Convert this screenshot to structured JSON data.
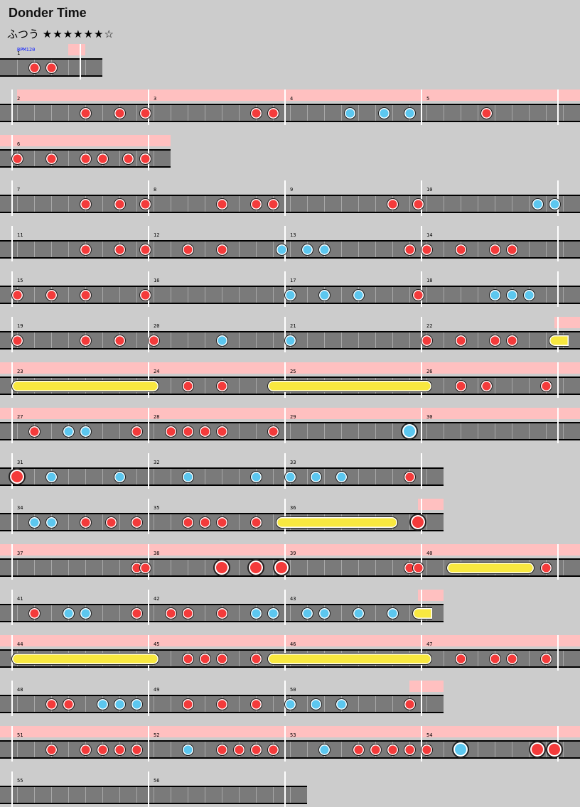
{
  "song": {
    "title": "Donder Time",
    "difficulty_label": "ふつう",
    "stars": "★★★★★★☆",
    "star_level": 6,
    "star_max": 7
  },
  "bpm_label": "BPM120",
  "colors": {
    "background": "#cccccc",
    "lane": "#7a7a7a",
    "gogo": "#ffc0c0",
    "don": "#f43b3b",
    "ka": "#5cc7ef",
    "roll": "#f8e840",
    "bar_line": "#ffffff"
  },
  "legend": {
    "d": "don (red)",
    "k": "ka (blue)",
    "D": "big don",
    "K": "big ka",
    "r": "drumroll"
  },
  "chart_data": {
    "type": "table",
    "unit": "beats",
    "rows": [
      {
        "measures": [
          {
            "n": "1",
            "beats": 2
          }
        ],
        "gogo": [
          [
            1.5,
            2
          ]
        ],
        "notes": [
          [
            0.5,
            "d"
          ],
          [
            1,
            "d"
          ]
        ]
      },
      {
        "measures": [
          {
            "n": "2",
            "beats": 4
          },
          {
            "n": "3",
            "beats": 4
          },
          {
            "n": "4",
            "beats": 4
          },
          {
            "n": "5",
            "beats": 4
          }
        ],
        "gogo": [
          [
            0,
            16.5
          ]
        ],
        "notes": [
          [
            2,
            "d"
          ],
          [
            3,
            "d"
          ],
          [
            3.75,
            "d"
          ],
          [
            7,
            "d"
          ],
          [
            7.5,
            "d"
          ],
          [
            9.75,
            "k"
          ],
          [
            10.75,
            "k"
          ],
          [
            11.5,
            "k"
          ],
          [
            13.75,
            "d"
          ]
        ]
      },
      {
        "measures": [
          {
            "n": "6",
            "beats": 4
          }
        ],
        "gogo": [
          [
            -0.5,
            4.5
          ]
        ],
        "notes": [
          [
            0,
            "d"
          ],
          [
            1,
            "d"
          ],
          [
            2,
            "d"
          ],
          [
            2.5,
            "d"
          ],
          [
            3.25,
            "d"
          ],
          [
            3.75,
            "d"
          ]
        ]
      },
      {
        "measures": [
          {
            "n": "7",
            "beats": 4
          },
          {
            "n": "8",
            "beats": 4
          },
          {
            "n": "9",
            "beats": 4
          },
          {
            "n": "10",
            "beats": 4
          }
        ],
        "gogo": [],
        "notes": [
          [
            2,
            "d"
          ],
          [
            3,
            "d"
          ],
          [
            3.75,
            "d"
          ],
          [
            6,
            "d"
          ],
          [
            7,
            "d"
          ],
          [
            7.5,
            "d"
          ],
          [
            11,
            "d"
          ],
          [
            11.75,
            "d"
          ],
          [
            15.25,
            "k"
          ],
          [
            15.75,
            "k"
          ]
        ]
      },
      {
        "measures": [
          {
            "n": "11",
            "beats": 4
          },
          {
            "n": "12",
            "beats": 4
          },
          {
            "n": "13",
            "beats": 4
          },
          {
            "n": "14",
            "beats": 4
          }
        ],
        "gogo": [],
        "notes": [
          [
            2,
            "d"
          ],
          [
            3,
            "d"
          ],
          [
            3.75,
            "d"
          ],
          [
            5,
            "d"
          ],
          [
            6,
            "d"
          ],
          [
            7.75,
            "k"
          ],
          [
            8.5,
            "k"
          ],
          [
            9,
            "k"
          ],
          [
            11.5,
            "d"
          ],
          [
            12,
            "d"
          ],
          [
            13,
            "d"
          ],
          [
            14,
            "d"
          ],
          [
            14.5,
            "d"
          ]
        ]
      },
      {
        "measures": [
          {
            "n": "15",
            "beats": 4
          },
          {
            "n": "16",
            "beats": 4
          },
          {
            "n": "17",
            "beats": 4
          },
          {
            "n": "18",
            "beats": 4
          }
        ],
        "gogo": [],
        "notes": [
          [
            0,
            "d"
          ],
          [
            1,
            "d"
          ],
          [
            2,
            "d"
          ],
          [
            3.75,
            "d"
          ],
          [
            8,
            "k"
          ],
          [
            9,
            "k"
          ],
          [
            10,
            "k"
          ],
          [
            11.75,
            "d"
          ],
          [
            14,
            "k"
          ],
          [
            14.5,
            "k"
          ],
          [
            15,
            "k"
          ]
        ]
      },
      {
        "measures": [
          {
            "n": "19",
            "beats": 4
          },
          {
            "n": "20",
            "beats": 4
          },
          {
            "n": "21",
            "beats": 4
          },
          {
            "n": "22",
            "beats": 4
          }
        ],
        "gogo": [
          [
            15.75,
            16.5
          ]
        ],
        "notes": [
          [
            0,
            "d"
          ],
          [
            2,
            "d"
          ],
          [
            3,
            "d"
          ],
          [
            4,
            "d"
          ],
          [
            6,
            "k"
          ],
          [
            8,
            "k"
          ],
          [
            12,
            "d"
          ],
          [
            13,
            "d"
          ],
          [
            14,
            "d"
          ],
          [
            14.5,
            "d"
          ]
        ],
        "rolls": [
          [
            15.75,
            16,
            true
          ]
        ]
      },
      {
        "measures": [
          {
            "n": "23",
            "beats": 4
          },
          {
            "n": "24",
            "beats": 4
          },
          {
            "n": "25",
            "beats": 4
          },
          {
            "n": "26",
            "beats": 4
          }
        ],
        "gogo": [
          [
            -0.5,
            16.5
          ]
        ],
        "notes": [
          [
            5,
            "d"
          ],
          [
            6,
            "d"
          ],
          [
            13,
            "d"
          ],
          [
            13.75,
            "d"
          ],
          [
            15.5,
            "d"
          ]
        ],
        "rolls": [
          [
            0,
            4,
            false
          ],
          [
            7.5,
            12,
            false
          ]
        ]
      },
      {
        "measures": [
          {
            "n": "27",
            "beats": 4
          },
          {
            "n": "28",
            "beats": 4
          },
          {
            "n": "29",
            "beats": 4
          },
          {
            "n": "30",
            "beats": 4
          }
        ],
        "gogo": [
          [
            -0.5,
            16.5
          ]
        ],
        "notes": [
          [
            0.5,
            "d"
          ],
          [
            1.5,
            "k"
          ],
          [
            2,
            "k"
          ],
          [
            3.5,
            "d"
          ],
          [
            4.5,
            "d"
          ],
          [
            5,
            "d"
          ],
          [
            5.5,
            "d"
          ],
          [
            6,
            "d"
          ],
          [
            7.5,
            "d"
          ],
          [
            11.5,
            "K"
          ]
        ]
      },
      {
        "measures": [
          {
            "n": "31",
            "beats": 4
          },
          {
            "n": "32",
            "beats": 4
          },
          {
            "n": "33",
            "beats": 4
          }
        ],
        "gogo": [],
        "notes": [
          [
            0,
            "D"
          ],
          [
            1,
            "k"
          ],
          [
            3,
            "k"
          ],
          [
            5,
            "k"
          ],
          [
            7,
            "k"
          ],
          [
            8,
            "k"
          ],
          [
            8.75,
            "k"
          ],
          [
            9.5,
            "k"
          ],
          [
            11.5,
            "d"
          ]
        ]
      },
      {
        "measures": [
          {
            "n": "34",
            "beats": 4
          },
          {
            "n": "35",
            "beats": 4
          },
          {
            "n": "36",
            "beats": 4
          }
        ],
        "gogo": [
          [
            11.75,
            12.5
          ]
        ],
        "notes": [
          [
            0.5,
            "k"
          ],
          [
            1,
            "k"
          ],
          [
            2,
            "d"
          ],
          [
            2.75,
            "d"
          ],
          [
            3.5,
            "d"
          ],
          [
            5,
            "d"
          ],
          [
            5.5,
            "d"
          ],
          [
            6,
            "d"
          ],
          [
            7,
            "d"
          ],
          [
            11.75,
            "D"
          ]
        ],
        "rolls": [
          [
            7.75,
            11,
            false
          ]
        ]
      },
      {
        "measures": [
          {
            "n": "37",
            "beats": 4
          },
          {
            "n": "38",
            "beats": 4
          },
          {
            "n": "39",
            "beats": 4
          },
          {
            "n": "40",
            "beats": 4
          }
        ],
        "gogo": [
          [
            -0.5,
            16.5
          ]
        ],
        "notes": [
          [
            3.5,
            "d"
          ],
          [
            3.75,
            "d"
          ],
          [
            6,
            "D"
          ],
          [
            7,
            "D"
          ],
          [
            7.75,
            "D"
          ],
          [
            11.5,
            "d"
          ],
          [
            11.75,
            "d"
          ],
          [
            15.5,
            "d"
          ]
        ],
        "rolls": [
          [
            12.75,
            15,
            false
          ]
        ]
      },
      {
        "measures": [
          {
            "n": "41",
            "beats": 4
          },
          {
            "n": "42",
            "beats": 4
          },
          {
            "n": "43",
            "beats": 4
          }
        ],
        "gogo": [
          [
            11.75,
            12.5
          ]
        ],
        "notes": [
          [
            0.5,
            "d"
          ],
          [
            1.5,
            "k"
          ],
          [
            2,
            "k"
          ],
          [
            3.5,
            "d"
          ],
          [
            4.5,
            "d"
          ],
          [
            5,
            "d"
          ],
          [
            6,
            "d"
          ],
          [
            7,
            "k"
          ],
          [
            7.5,
            "k"
          ],
          [
            8.5,
            "k"
          ],
          [
            9,
            "k"
          ],
          [
            10,
            "k"
          ],
          [
            11,
            "k"
          ]
        ],
        "rolls": [
          [
            11.75,
            12,
            true
          ]
        ]
      },
      {
        "measures": [
          {
            "n": "44",
            "beats": 4
          },
          {
            "n": "45",
            "beats": 4
          },
          {
            "n": "46",
            "beats": 4
          },
          {
            "n": "47",
            "beats": 4
          }
        ],
        "gogo": [
          [
            -0.5,
            16.5
          ]
        ],
        "notes": [
          [
            5,
            "d"
          ],
          [
            5.5,
            "d"
          ],
          [
            6,
            "d"
          ],
          [
            7,
            "d"
          ],
          [
            13,
            "d"
          ],
          [
            14,
            "d"
          ],
          [
            14.5,
            "d"
          ],
          [
            15.5,
            "d"
          ]
        ],
        "rolls": [
          [
            0,
            4,
            false
          ],
          [
            7.5,
            12,
            false
          ]
        ]
      },
      {
        "measures": [
          {
            "n": "48",
            "beats": 4
          },
          {
            "n": "49",
            "beats": 4
          },
          {
            "n": "50",
            "beats": 4
          }
        ],
        "gogo": [
          [
            11.5,
            12.5
          ]
        ],
        "notes": [
          [
            1,
            "d"
          ],
          [
            1.5,
            "d"
          ],
          [
            2.5,
            "k"
          ],
          [
            3,
            "k"
          ],
          [
            3.5,
            "k"
          ],
          [
            5,
            "d"
          ],
          [
            6,
            "d"
          ],
          [
            7,
            "d"
          ],
          [
            8,
            "k"
          ],
          [
            8.75,
            "k"
          ],
          [
            9.5,
            "k"
          ],
          [
            11.5,
            "d"
          ]
        ]
      },
      {
        "measures": [
          {
            "n": "51",
            "beats": 4
          },
          {
            "n": "52",
            "beats": 4
          },
          {
            "n": "53",
            "beats": 4
          },
          {
            "n": "54",
            "beats": 4
          }
        ],
        "gogo": [
          [
            -0.5,
            16.5
          ]
        ],
        "notes": [
          [
            1,
            "d"
          ],
          [
            2,
            "d"
          ],
          [
            2.5,
            "d"
          ],
          [
            3,
            "d"
          ],
          [
            3.5,
            "d"
          ],
          [
            5,
            "k"
          ],
          [
            6,
            "d"
          ],
          [
            6.5,
            "d"
          ],
          [
            7,
            "d"
          ],
          [
            7.5,
            "d"
          ],
          [
            9,
            "k"
          ],
          [
            10,
            "d"
          ],
          [
            10.5,
            "d"
          ],
          [
            11,
            "d"
          ],
          [
            11.5,
            "d"
          ],
          [
            12,
            "d"
          ],
          [
            13,
            "K"
          ],
          [
            15.25,
            "D"
          ],
          [
            15.75,
            "D"
          ]
        ]
      },
      {
        "measures": [
          {
            "n": "55",
            "beats": 4
          },
          {
            "n": "56",
            "beats": 4
          }
        ],
        "gogo": [],
        "notes": []
      }
    ]
  }
}
